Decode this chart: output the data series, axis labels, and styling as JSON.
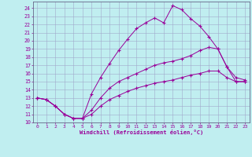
{
  "xlabel": "Windchill (Refroidissement éolien,°C)",
  "bg_color": "#c0eef0",
  "line_color": "#990099",
  "grid_color": "#a0a8cc",
  "xlim": [
    -0.5,
    23.5
  ],
  "ylim": [
    10,
    24.8
  ],
  "yticks": [
    10,
    11,
    12,
    13,
    14,
    15,
    16,
    17,
    18,
    19,
    20,
    21,
    22,
    23,
    24
  ],
  "xticks": [
    0,
    1,
    2,
    3,
    4,
    5,
    6,
    7,
    8,
    9,
    10,
    11,
    12,
    13,
    14,
    15,
    16,
    17,
    18,
    19,
    20,
    21,
    22,
    23
  ],
  "line1_x": [
    0,
    1,
    2,
    3,
    4,
    5,
    6,
    7,
    8,
    9,
    10,
    11,
    12,
    13,
    14,
    15,
    16,
    17,
    18,
    19,
    20,
    21,
    22,
    23
  ],
  "line1_y": [
    13.0,
    12.8,
    12.0,
    11.0,
    10.5,
    10.5,
    13.5,
    15.5,
    17.2,
    18.8,
    20.2,
    21.5,
    22.2,
    22.8,
    22.2,
    24.3,
    23.8,
    22.7,
    21.8,
    20.5,
    19.0,
    16.8,
    15.0,
    15.0
  ],
  "line2_x": [
    0,
    1,
    2,
    3,
    4,
    5,
    6,
    7,
    8,
    9,
    10,
    11,
    12,
    13,
    14,
    15,
    16,
    17,
    18,
    19,
    20,
    21,
    22,
    23
  ],
  "line2_y": [
    13.0,
    12.8,
    12.0,
    11.0,
    10.5,
    10.5,
    11.5,
    13.0,
    14.2,
    15.0,
    15.5,
    16.0,
    16.5,
    17.0,
    17.3,
    17.5,
    17.8,
    18.2,
    18.8,
    19.2,
    19.0,
    16.8,
    15.5,
    15.2
  ],
  "line3_x": [
    0,
    1,
    2,
    3,
    4,
    5,
    6,
    7,
    8,
    9,
    10,
    11,
    12,
    13,
    14,
    15,
    16,
    17,
    18,
    19,
    20,
    21,
    22,
    23
  ],
  "line3_y": [
    13.0,
    12.8,
    12.0,
    11.0,
    10.5,
    10.5,
    11.0,
    12.0,
    12.8,
    13.3,
    13.8,
    14.2,
    14.5,
    14.8,
    15.0,
    15.2,
    15.5,
    15.8,
    16.0,
    16.3,
    16.3,
    15.5,
    15.0,
    15.0
  ]
}
